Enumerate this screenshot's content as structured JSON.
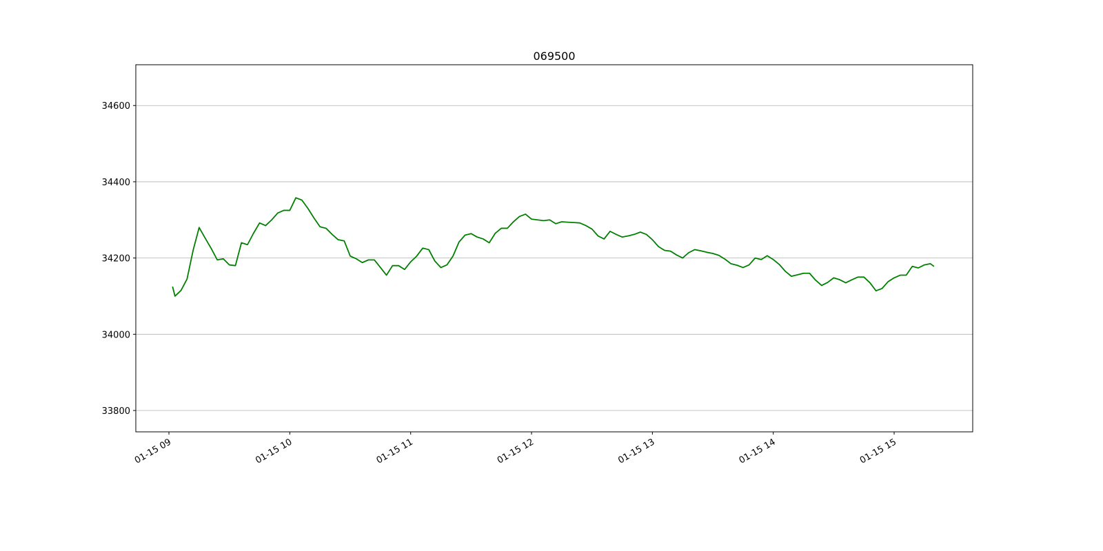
{
  "chart_data": {
    "type": "line",
    "title": "069500",
    "x": [
      9.03,
      9.05,
      9.1,
      9.15,
      9.2,
      9.25,
      9.3,
      9.35,
      9.4,
      9.45,
      9.5,
      9.55,
      9.6,
      9.65,
      9.7,
      9.75,
      9.8,
      9.85,
      9.9,
      9.95,
      10.0,
      10.05,
      10.1,
      10.15,
      10.2,
      10.25,
      10.3,
      10.35,
      10.4,
      10.45,
      10.5,
      10.55,
      10.6,
      10.65,
      10.7,
      10.75,
      10.8,
      10.85,
      10.9,
      10.95,
      11.0,
      11.05,
      11.1,
      11.15,
      11.2,
      11.25,
      11.3,
      11.35,
      11.4,
      11.45,
      11.5,
      11.55,
      11.6,
      11.65,
      11.7,
      11.75,
      11.8,
      11.85,
      11.9,
      11.95,
      12.0,
      12.05,
      12.1,
      12.15,
      12.2,
      12.25,
      12.3,
      12.35,
      12.4,
      12.45,
      12.5,
      12.55,
      12.6,
      12.65,
      12.7,
      12.75,
      12.8,
      12.85,
      12.9,
      12.95,
      13.0,
      13.05,
      13.1,
      13.15,
      13.2,
      13.25,
      13.3,
      13.35,
      13.4,
      13.45,
      13.5,
      13.55,
      13.6,
      13.65,
      13.7,
      13.75,
      13.8,
      13.85,
      13.9,
      13.95,
      14.0,
      14.05,
      14.1,
      14.15,
      14.2,
      14.25,
      14.3,
      14.35,
      14.4,
      14.45,
      14.5,
      14.55,
      14.6,
      14.65,
      14.7,
      14.75,
      14.8,
      14.85,
      14.9,
      14.95,
      15.0,
      15.05,
      15.1,
      15.15,
      15.2,
      15.25,
      15.3,
      15.33
    ],
    "values": [
      34125,
      34100,
      34115,
      34145,
      34220,
      34280,
      34252,
      34225,
      34195,
      34198,
      34182,
      34180,
      34240,
      34235,
      34265,
      34292,
      34285,
      34300,
      34318,
      34325,
      34325,
      34358,
      34352,
      34330,
      34305,
      34282,
      34278,
      34262,
      34248,
      34245,
      34205,
      34198,
      34188,
      34195,
      34195,
      34175,
      34155,
      34180,
      34180,
      34170,
      34190,
      34205,
      34226,
      34222,
      34192,
      34175,
      34182,
      34205,
      34242,
      34260,
      34264,
      34255,
      34250,
      34240,
      34265,
      34278,
      34278,
      34295,
      34309,
      34315,
      34302,
      34300,
      34298,
      34300,
      34290,
      34295,
      34294,
      34293,
      34292,
      34285,
      34276,
      34258,
      34250,
      34270,
      34262,
      34255,
      34258,
      34262,
      34268,
      34262,
      34248,
      34230,
      34220,
      34218,
      34208,
      34200,
      34214,
      34222,
      34219,
      34215,
      34212,
      34207,
      34197,
      34185,
      34181,
      34175,
      34182,
      34200,
      34196,
      34206,
      34196,
      34183,
      34165,
      34152,
      34156,
      34160,
      34160,
      34142,
      34128,
      34136,
      34148,
      34143,
      34135,
      34143,
      34150,
      34150,
      34135,
      34114,
      34120,
      34138,
      34148,
      34155,
      34155,
      34178,
      34174,
      34182,
      34185,
      34178
    ],
    "color": "#008000",
    "xlim": [
      8.726,
      15.65
    ],
    "xticks": [
      {
        "value": 9,
        "label": "01-15 09"
      },
      {
        "value": 10,
        "label": "01-15 10"
      },
      {
        "value": 11,
        "label": "01-15 11"
      },
      {
        "value": 12,
        "label": "01-15 12"
      },
      {
        "value": 13,
        "label": "01-15 13"
      },
      {
        "value": 14,
        "label": "01-15 14"
      },
      {
        "value": 15,
        "label": "01-15 15"
      }
    ],
    "ylim": [
      33744,
      34707
    ],
    "yticks": [
      33800,
      34000,
      34200,
      34400,
      34600
    ],
    "grid": "y"
  }
}
